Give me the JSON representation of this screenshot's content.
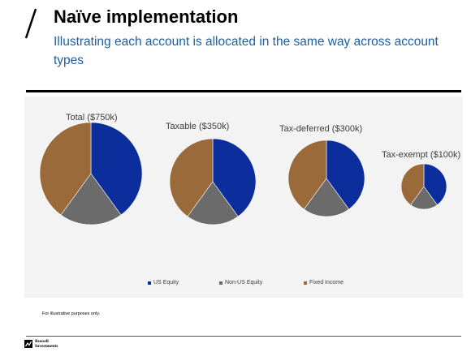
{
  "slide": {
    "title": "Naïve implementation",
    "subtitle": "Illustrating each account is allocated in the same way across account types",
    "footnote": "For illustrative purposes only.",
    "logo_line1": "Russell",
    "logo_line2": "Investments"
  },
  "colors": {
    "US Equity": "#0b2e9c",
    "Non-US Equity": "#6b6b6b",
    "Fixed Income": "#9a6a3a",
    "subtitle": "#1a5fa8"
  },
  "chart_data": {
    "type": "pie",
    "categories": [
      "US Equity",
      "Non-US Equity",
      "Fixed Income"
    ],
    "legend": {
      "placement": "bottom"
    },
    "pies": [
      {
        "label": "Total ($750k)",
        "values": [
          40,
          20,
          40
        ]
      },
      {
        "label": "Taxable ($350k)",
        "values": [
          40,
          20,
          40
        ]
      },
      {
        "label": "Tax-deferred ($300k)",
        "values": [
          40,
          20,
          40
        ]
      },
      {
        "label": "Tax-exempt ($100k)",
        "values": [
          40,
          20,
          40
        ]
      }
    ]
  }
}
